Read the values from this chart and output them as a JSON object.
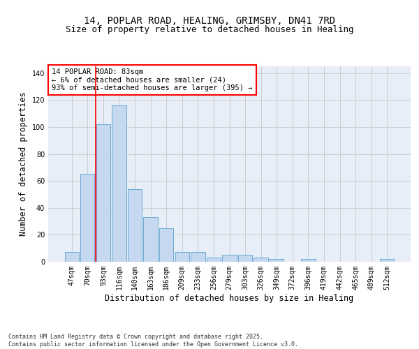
{
  "title_line1": "14, POPLAR ROAD, HEALING, GRIMSBY, DN41 7RD",
  "title_line2": "Size of property relative to detached houses in Healing",
  "xlabel": "Distribution of detached houses by size in Healing",
  "ylabel": "Number of detached properties",
  "categories": [
    "47sqm",
    "70sqm",
    "93sqm",
    "116sqm",
    "140sqm",
    "163sqm",
    "186sqm",
    "209sqm",
    "233sqm",
    "256sqm",
    "279sqm",
    "303sqm",
    "326sqm",
    "349sqm",
    "372sqm",
    "396sqm",
    "419sqm",
    "442sqm",
    "465sqm",
    "489sqm",
    "512sqm"
  ],
  "bar_values": [
    7,
    65,
    102,
    116,
    54,
    33,
    25,
    7,
    7,
    3,
    5,
    5,
    3,
    2,
    0,
    2,
    0,
    0,
    0,
    0,
    2
  ],
  "bar_color": "#c5d8f0",
  "bar_edge_color": "#6aaad4",
  "grid_color": "#cccccc",
  "bg_color": "#e8eef8",
  "vline_x": 1.5,
  "vline_color": "red",
  "annotation_text": "14 POPLAR ROAD: 83sqm\n← 6% of detached houses are smaller (24)\n93% of semi-detached houses are larger (395) →",
  "annotation_box_color": "white",
  "annotation_box_edge_color": "red",
  "ylim": [
    0,
    145
  ],
  "yticks": [
    0,
    20,
    40,
    60,
    80,
    100,
    120,
    140
  ],
  "footer_text": "Contains HM Land Registry data © Crown copyright and database right 2025.\nContains public sector information licensed under the Open Government Licence v3.0.",
  "title_fontsize": 10,
  "subtitle_fontsize": 9,
  "tick_fontsize": 7,
  "label_fontsize": 8.5,
  "ann_fontsize": 7.5,
  "footer_fontsize": 6
}
